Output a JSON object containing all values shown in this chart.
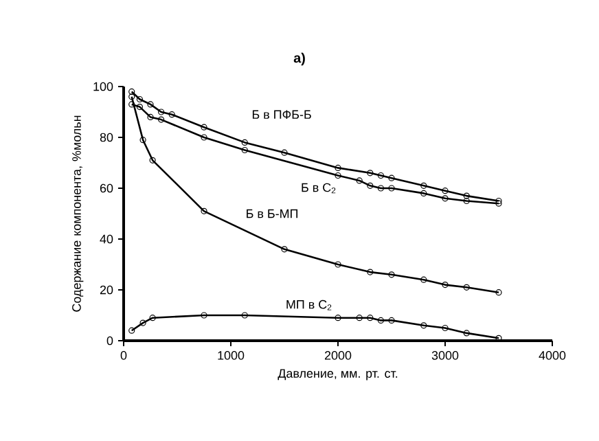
{
  "chart_data": {
    "type": "line",
    "title": "а)",
    "xlabel": "Давление, мм. рт. ст.",
    "ylabel": "Содержание компонента, %мольн",
    "xlim": [
      0,
      4000
    ],
    "ylim": [
      0,
      100
    ],
    "xticks": [
      0,
      1000,
      2000,
      3000,
      4000
    ],
    "yticks": [
      0,
      20,
      40,
      60,
      80,
      100
    ],
    "marker": "circle",
    "line_style": "solid",
    "grid": false,
    "legend": false,
    "series": [
      {
        "name": "Б в ПФБ-Б",
        "color": "#000000",
        "x": [
          75,
          150,
          250,
          350,
          450,
          750,
          1130,
          1500,
          2000,
          2300,
          2400,
          2500,
          2800,
          3000,
          3200,
          3500
        ],
        "values": [
          98,
          95,
          93,
          90,
          89,
          84,
          78,
          74,
          68,
          66,
          65,
          64,
          61,
          59,
          57,
          55
        ]
      },
      {
        "name": "Б в C$_{2}$",
        "color": "#000000",
        "x": [
          75,
          150,
          250,
          350,
          750,
          1130,
          2000,
          2200,
          2300,
          2400,
          2500,
          2800,
          3000,
          3200,
          3500
        ],
        "values": [
          93,
          92,
          88,
          87,
          80,
          75,
          65,
          63,
          61,
          60,
          60,
          58,
          56,
          55,
          54
        ]
      },
      {
        "name": "Б в Б-МП",
        "color": "#000000",
        "x": [
          75,
          180,
          270,
          750,
          1500,
          2000,
          2300,
          2500,
          2800,
          3000,
          3200,
          3500
        ],
        "values": [
          96,
          79,
          71,
          51,
          36,
          30,
          27,
          26,
          24,
          22,
          21,
          19
        ]
      },
      {
        "name": "МП в C$_{2}$",
        "color": "#000000",
        "x": [
          75,
          180,
          270,
          750,
          1130,
          2000,
          2200,
          2300,
          2400,
          2500,
          2800,
          3000,
          3200,
          3500
        ],
        "values": [
          4,
          7,
          9,
          10,
          10,
          9,
          9,
          9,
          8,
          8,
          6,
          5,
          3,
          1
        ]
      }
    ]
  }
}
